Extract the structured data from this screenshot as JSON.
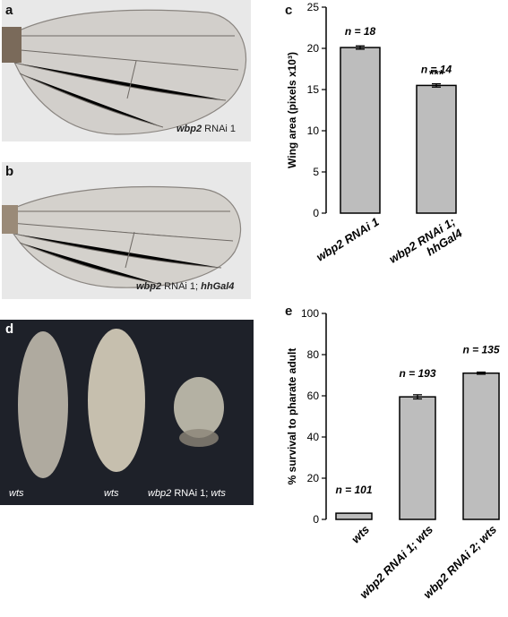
{
  "panels": {
    "a": {
      "letter": "a",
      "caption_italic": "wbp2",
      "caption_rest": " RNAi 1"
    },
    "b": {
      "letter": "b",
      "caption_italic": "wbp2",
      "caption_mid": " RNAi 1; ",
      "caption_italic2": "hhGal4"
    },
    "c": {
      "letter": "c"
    },
    "d": {
      "letter": "d",
      "labels": [
        "wts",
        "wts"
      ],
      "label3_italic": "wbp2",
      "label3_mid": " RNAi 1; ",
      "label3_italic2": "wts"
    },
    "e": {
      "letter": "e"
    }
  },
  "colors": {
    "bar_fill": "#bdbdbd",
    "bar_stroke": "#000000",
    "dark_bg": "#1e2129",
    "wing_bg": "#e7e7e7"
  },
  "chart_data": [
    {
      "type": "bar",
      "panel": "c",
      "ylabel": "Wing area (pixels x10³)",
      "ylim": [
        0,
        25
      ],
      "yticks": [
        0,
        5,
        10,
        15,
        20,
        25
      ],
      "categories": [
        "wbp2 RNAi 1",
        "wbp2 RNAi 1; hhGal4"
      ],
      "category_lines": [
        [
          "wbp2 RNAi 1"
        ],
        [
          "wbp2 RNAi 1;",
          "hhGal4"
        ]
      ],
      "values": [
        20.1,
        15.5
      ],
      "errors": [
        0.2,
        0.2
      ],
      "n_labels": [
        "n = 18",
        "n = 14"
      ],
      "significance": [
        "",
        "***"
      ]
    },
    {
      "type": "bar",
      "panel": "e",
      "ylabel": "% survival to pharate adult",
      "ylim": [
        0,
        100
      ],
      "yticks": [
        0,
        20,
        40,
        60,
        80,
        100
      ],
      "categories": [
        "wts",
        "wbp2 RNAi 1; wts",
        "wbp2 RNAi 2; wts"
      ],
      "category_lines": [
        [
          "wts"
        ],
        [
          "wbp2 RNAi 1; wts"
        ],
        [
          "wbp2 RNAi 2; wts"
        ]
      ],
      "values": [
        3,
        59.5,
        71
      ],
      "errors": [
        0,
        1.0,
        0.5
      ],
      "n_labels": [
        "n = 101",
        "n = 193",
        "n = 135"
      ],
      "significance": [
        "",
        "",
        ""
      ]
    }
  ]
}
